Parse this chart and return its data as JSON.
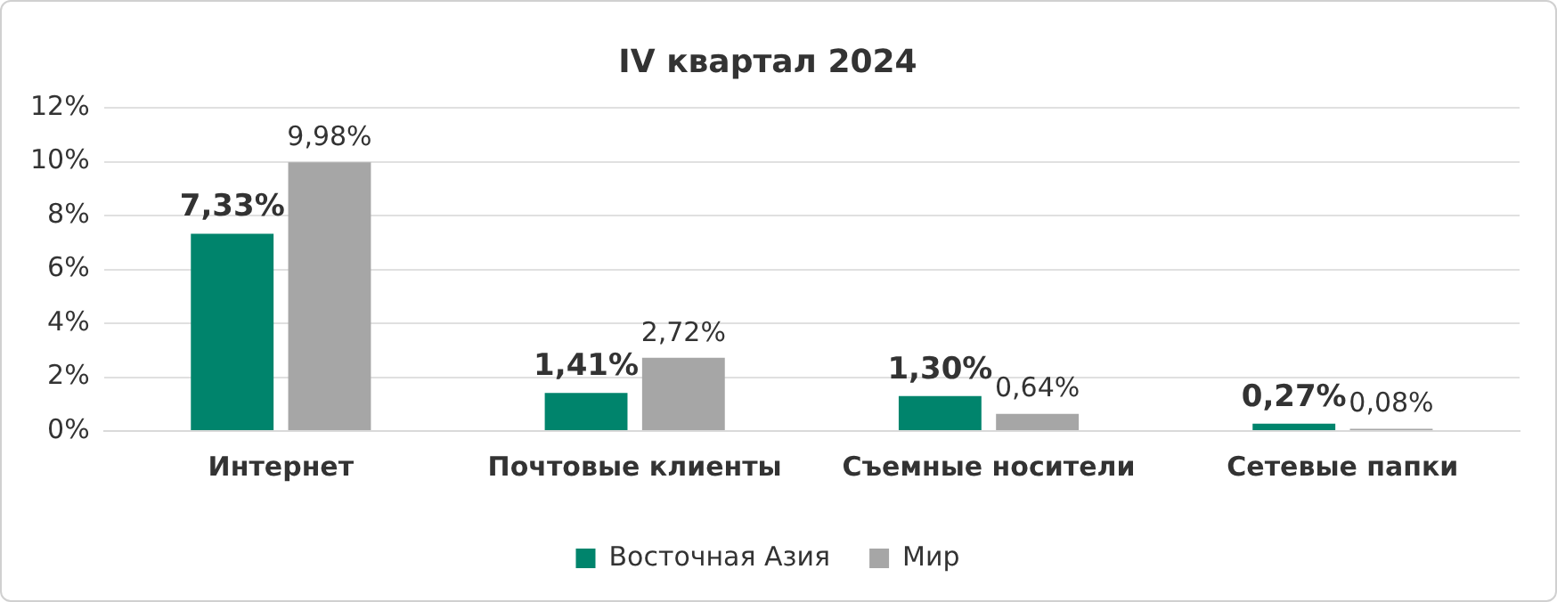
{
  "chart_data": {
    "type": "bar",
    "title": "IV квартал 2024",
    "categories": [
      "Интернет",
      "Почтовые клиенты",
      "Съемные носители",
      "Сетевые папки"
    ],
    "series": [
      {
        "name": "Восточная Азия",
        "color": "#00846c",
        "values": [
          7.33,
          1.41,
          1.3,
          0.27
        ],
        "value_labels": [
          "7,33%",
          "1,41%",
          "1,30%",
          "0,27%"
        ]
      },
      {
        "name": "Мир",
        "color": "#a6a6a6",
        "values": [
          9.98,
          2.72,
          0.64,
          0.08
        ],
        "value_labels": [
          "9,98%",
          "2,72%",
          "0,64%",
          "0,08%"
        ]
      }
    ],
    "ylim": [
      0,
      12
    ],
    "yticks": [
      {
        "value": 0,
        "label": "0%"
      },
      {
        "value": 2,
        "label": "2%"
      },
      {
        "value": 4,
        "label": "4%"
      },
      {
        "value": 6,
        "label": "6%"
      },
      {
        "value": 8,
        "label": "8%"
      },
      {
        "value": 10,
        "label": "10%"
      },
      {
        "value": 12,
        "label": "12%"
      }
    ],
    "grid": "y",
    "legend": "bottom"
  }
}
